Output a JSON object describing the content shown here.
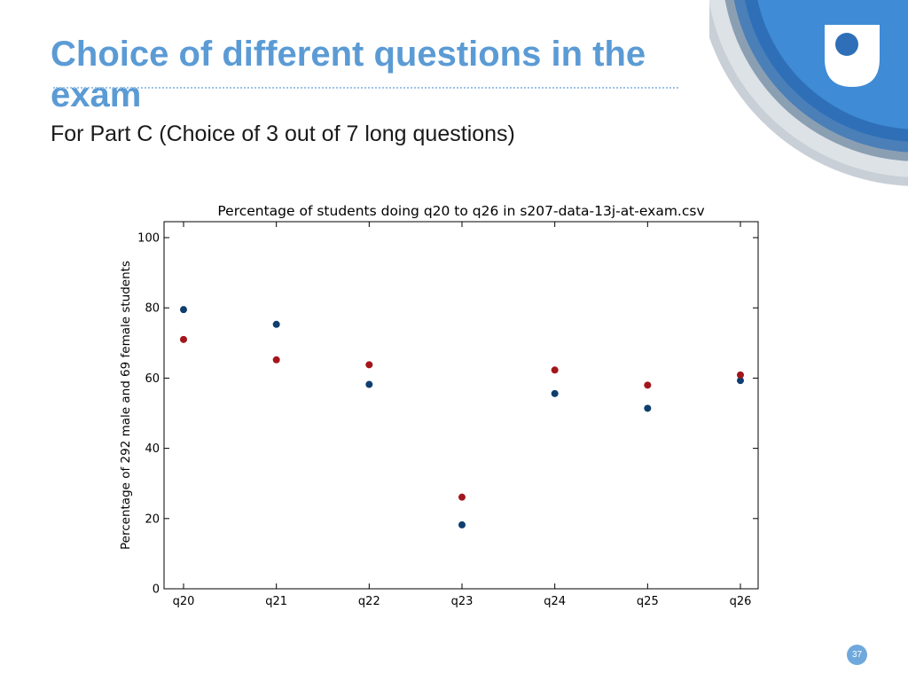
{
  "slide": {
    "title": "Choice of different questions in the exam",
    "subtitle": "For Part C (Choice of 3 out of 7 long questions)",
    "page_number": "37",
    "accent_color": "#5b9bd5",
    "logo_icon": "open-university-shield-icon"
  },
  "chart_data": {
    "type": "scatter",
    "title": "Percentage of students doing q20 to q26 in s207-data-13j-at-exam.csv",
    "xlabel": "",
    "ylabel": "Percentage of 292 male and 69 female students",
    "categories": [
      "q20",
      "q21",
      "q22",
      "q23",
      "q24",
      "q25",
      "q26"
    ],
    "ylim": [
      0,
      100
    ],
    "yticks": [
      0,
      20,
      40,
      60,
      80,
      100
    ],
    "grid": false,
    "legend": "none",
    "series": [
      {
        "color": "#0e3e6e",
        "values": [
          79.5,
          75.3,
          58.2,
          18.2,
          55.6,
          51.4,
          59.3
        ]
      },
      {
        "color": "#a3161c",
        "values": [
          71.0,
          65.2,
          63.8,
          26.1,
          62.3,
          58.0,
          60.9
        ]
      }
    ]
  }
}
